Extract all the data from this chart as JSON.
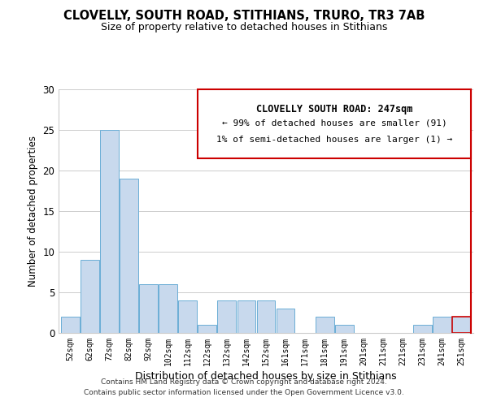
{
  "title": "CLOVELLY, SOUTH ROAD, STITHIANS, TRURO, TR3 7AB",
  "subtitle": "Size of property relative to detached houses in Stithians",
  "xlabel": "Distribution of detached houses by size in Stithians",
  "ylabel": "Number of detached properties",
  "bin_labels": [
    "52sqm",
    "62sqm",
    "72sqm",
    "82sqm",
    "92sqm",
    "102sqm",
    "112sqm",
    "122sqm",
    "132sqm",
    "142sqm",
    "152sqm",
    "161sqm",
    "171sqm",
    "181sqm",
    "191sqm",
    "201sqm",
    "211sqm",
    "221sqm",
    "231sqm",
    "241sqm",
    "251sqm"
  ],
  "bar_heights": [
    2,
    9,
    25,
    19,
    6,
    6,
    4,
    1,
    4,
    4,
    4,
    3,
    0,
    2,
    1,
    0,
    0,
    0,
    1,
    2,
    2
  ],
  "bar_color": "#c8d9ed",
  "bar_edge_color": "#6baed6",
  "highlight_bar_index": 20,
  "highlight_bar_edge_color": "#cc0000",
  "annotation_title": "CLOVELLY SOUTH ROAD: 247sqm",
  "annotation_line1": "← 99% of detached houses are smaller (91)",
  "annotation_line2": "1% of semi-detached houses are larger (1) →",
  "annotation_box_edge_color": "#cc0000",
  "ylim": [
    0,
    30
  ],
  "yticks": [
    0,
    5,
    10,
    15,
    20,
    25,
    30
  ],
  "footer_line1": "Contains HM Land Registry data © Crown copyright and database right 2024.",
  "footer_line2": "Contains public sector information licensed under the Open Government Licence v3.0.",
  "bg_color": "#ffffff",
  "grid_color": "#cccccc"
}
